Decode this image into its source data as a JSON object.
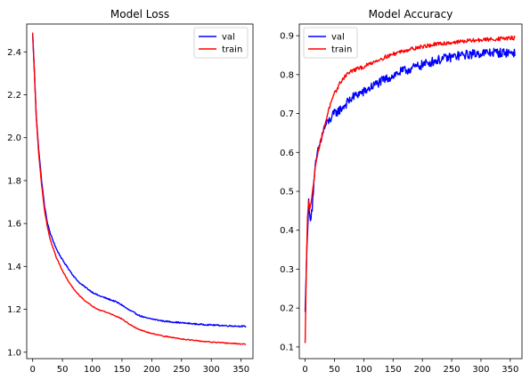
{
  "chart_data": [
    {
      "type": "line",
      "title": "Model Loss",
      "xlabel": "",
      "ylabel": "",
      "xlim": [
        -10,
        370
      ],
      "ylim": [
        0.97,
        2.53
      ],
      "xticks": [
        0,
        50,
        100,
        150,
        200,
        250,
        300,
        350
      ],
      "yticks": [
        1.0,
        1.2,
        1.4,
        1.6,
        1.8,
        2.0,
        2.2,
        2.4
      ],
      "ytick_decimals": 1,
      "legend": "top-right",
      "grid": false,
      "series": [
        {
          "name": "val",
          "color": "#0000ff",
          "x": [
            0,
            3,
            6,
            10,
            15,
            20,
            25,
            30,
            40,
            50,
            60,
            70,
            80,
            90,
            100,
            110,
            120,
            130,
            140,
            150,
            160,
            170,
            180,
            190,
            200,
            220,
            250,
            280,
            300,
            330,
            358
          ],
          "y": [
            2.48,
            2.3,
            2.1,
            1.95,
            1.8,
            1.68,
            1.6,
            1.55,
            1.48,
            1.43,
            1.39,
            1.35,
            1.32,
            1.3,
            1.28,
            1.265,
            1.255,
            1.245,
            1.235,
            1.22,
            1.2,
            1.185,
            1.17,
            1.16,
            1.155,
            1.145,
            1.137,
            1.13,
            1.127,
            1.123,
            1.12
          ],
          "noise": 0.003
        },
        {
          "name": "train",
          "color": "#ff0000",
          "x": [
            0,
            3,
            6,
            10,
            15,
            20,
            25,
            30,
            40,
            50,
            60,
            70,
            80,
            90,
            100,
            110,
            120,
            130,
            140,
            150,
            160,
            170,
            180,
            190,
            200,
            220,
            250,
            280,
            300,
            330,
            358
          ],
          "y": [
            2.49,
            2.3,
            2.1,
            1.93,
            1.78,
            1.66,
            1.58,
            1.52,
            1.44,
            1.38,
            1.33,
            1.29,
            1.26,
            1.235,
            1.215,
            1.2,
            1.19,
            1.18,
            1.168,
            1.155,
            1.135,
            1.118,
            1.105,
            1.095,
            1.088,
            1.075,
            1.062,
            1.052,
            1.047,
            1.042,
            1.037
          ],
          "noise": 0.002
        }
      ]
    },
    {
      "type": "line",
      "title": "Model Accuracy",
      "xlabel": "",
      "ylabel": "",
      "xlim": [
        -10,
        370
      ],
      "ylim": [
        0.07,
        0.93
      ],
      "xticks": [
        0,
        50,
        100,
        150,
        200,
        250,
        300,
        350
      ],
      "yticks": [
        0.1,
        0.2,
        0.3,
        0.4,
        0.5,
        0.6,
        0.7,
        0.8,
        0.9
      ],
      "ytick_decimals": 1,
      "legend": "top-left",
      "grid": false,
      "series": [
        {
          "name": "val",
          "color": "#0000ff",
          "x": [
            0,
            2,
            4,
            6,
            8,
            10,
            12,
            15,
            18,
            20,
            25,
            30,
            35,
            40,
            50,
            60,
            70,
            80,
            90,
            100,
            120,
            140,
            160,
            180,
            200,
            220,
            240,
            260,
            280,
            300,
            320,
            340,
            358
          ],
          "y": [
            0.19,
            0.3,
            0.4,
            0.47,
            0.43,
            0.44,
            0.46,
            0.52,
            0.57,
            0.59,
            0.62,
            0.65,
            0.67,
            0.68,
            0.7,
            0.71,
            0.725,
            0.74,
            0.75,
            0.755,
            0.775,
            0.79,
            0.805,
            0.815,
            0.825,
            0.835,
            0.842,
            0.848,
            0.852,
            0.855,
            0.857,
            0.856,
            0.857
          ],
          "noise": 0.012
        },
        {
          "name": "train",
          "color": "#ff0000",
          "x": [
            0,
            2,
            4,
            6,
            8,
            10,
            12,
            15,
            18,
            20,
            25,
            30,
            35,
            40,
            50,
            60,
            70,
            80,
            90,
            100,
            120,
            140,
            160,
            180,
            200,
            220,
            240,
            260,
            280,
            300,
            320,
            340,
            358
          ],
          "y": [
            0.11,
            0.3,
            0.43,
            0.48,
            0.46,
            0.47,
            0.49,
            0.53,
            0.57,
            0.59,
            0.62,
            0.65,
            0.68,
            0.71,
            0.75,
            0.78,
            0.8,
            0.81,
            0.815,
            0.82,
            0.835,
            0.847,
            0.858,
            0.866,
            0.872,
            0.877,
            0.881,
            0.884,
            0.887,
            0.889,
            0.891,
            0.893,
            0.894
          ],
          "noise": 0.005
        }
      ]
    }
  ]
}
